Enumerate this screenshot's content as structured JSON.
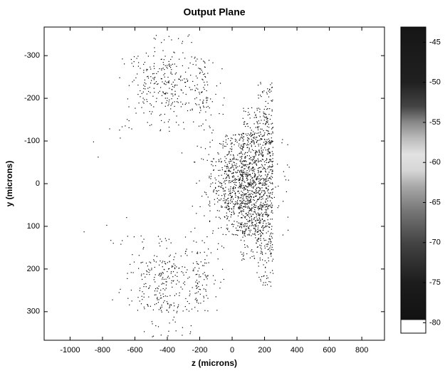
{
  "chart_data": {
    "type": "intensity",
    "title": "Output Plane",
    "x_label": "z (microns)",
    "y_label": "y (microns)",
    "xlim": [
      -1160,
      940
    ],
    "ylim": [
      367,
      -367
    ],
    "xticks": [
      -1000,
      -800,
      -600,
      -400,
      -200,
      0,
      200,
      400,
      600,
      800
    ],
    "yticks": [
      -300,
      -200,
      -100,
      0,
      100,
      200,
      300
    ],
    "x": [
      -1100,
      -1000,
      -900,
      -800,
      -700,
      -600,
      -500,
      -400,
      -300,
      -200,
      -100,
      0,
      100,
      200,
      300,
      400,
      500,
      600,
      700,
      800,
      900
    ],
    "y": [
      -330,
      -270,
      -210,
      -150,
      -90,
      -30,
      30,
      90,
      150,
      210,
      270,
      330
    ],
    "values": [
      [
        -80,
        -80,
        -80,
        -80,
        -80,
        -80,
        -74,
        -74,
        -74,
        -80,
        -80,
        -80,
        -80,
        -80,
        -80,
        -80,
        -80,
        -80,
        -80,
        -80,
        -80
      ],
      [
        -80,
        -80,
        -80,
        -80,
        -76,
        -72,
        -68,
        -66,
        -70,
        -68,
        -76,
        -80,
        -80,
        -80,
        -80,
        -80,
        -80,
        -80,
        -80,
        -80,
        -80
      ],
      [
        -80,
        -80,
        -80,
        -80,
        -80,
        -72,
        -68,
        -64,
        -70,
        -66,
        -74,
        -80,
        -80,
        -68,
        -80,
        -80,
        -80,
        -80,
        -80,
        -80,
        -80
      ],
      [
        -80,
        -80,
        -80,
        -78,
        -76,
        -74,
        -74,
        -72,
        -74,
        -72,
        -74,
        -80,
        -68,
        -62,
        -80,
        -80,
        -80,
        -80,
        -80,
        -80,
        -80
      ],
      [
        -80,
        -80,
        -78,
        -78,
        -78,
        -80,
        -80,
        -80,
        -78,
        -76,
        -72,
        -64,
        -56,
        -58,
        -76,
        -80,
        -80,
        -80,
        -80,
        -80,
        -80
      ],
      [
        -80,
        -80,
        -80,
        -80,
        -80,
        -80,
        -80,
        -80,
        -80,
        -74,
        -66,
        -56,
        -52,
        -56,
        -74,
        -80,
        -80,
        -80,
        -80,
        -80,
        -80
      ],
      [
        -80,
        -80,
        -80,
        -80,
        -80,
        -80,
        -80,
        -80,
        -80,
        -74,
        -66,
        -56,
        -52,
        -56,
        -74,
        -80,
        -80,
        -80,
        -80,
        -80,
        -80
      ],
      [
        -80,
        -80,
        -78,
        -78,
        -78,
        -80,
        -80,
        -80,
        -78,
        -76,
        -72,
        -64,
        -56,
        -58,
        -76,
        -80,
        -80,
        -80,
        -80,
        -80,
        -80
      ],
      [
        -80,
        -80,
        -80,
        -78,
        -76,
        -74,
        -74,
        -72,
        -74,
        -72,
        -74,
        -80,
        -68,
        -62,
        -80,
        -80,
        -80,
        -80,
        -80,
        -80,
        -80
      ],
      [
        -80,
        -80,
        -80,
        -80,
        -80,
        -72,
        -68,
        -64,
        -70,
        -66,
        -74,
        -80,
        -80,
        -68,
        -80,
        -80,
        -80,
        -80,
        -80,
        -80,
        -80
      ],
      [
        -80,
        -80,
        -80,
        -80,
        -76,
        -72,
        -68,
        -66,
        -70,
        -68,
        -76,
        -80,
        -80,
        -80,
        -80,
        -80,
        -80,
        -80,
        -80,
        -80,
        -80
      ],
      [
        -80,
        -80,
        -80,
        -80,
        -80,
        -80,
        -74,
        -74,
        -74,
        -80,
        -80,
        -80,
        -80,
        -80,
        -80,
        -80,
        -80,
        -80,
        -80,
        -80,
        -80
      ]
    ],
    "dot_color": "#000000",
    "colorbar": {
      "clim": [
        -81.3,
        -43.1
      ],
      "ticks": [
        -45,
        -50,
        -55,
        -60,
        -65,
        -70,
        -75,
        -80
      ],
      "colors": [
        {
          "value": -43.1,
          "color": "#161616"
        },
        {
          "value": -50,
          "color": "#202020"
        },
        {
          "value": -53,
          "color": "#444444"
        },
        {
          "value": -55,
          "color": "#888888"
        },
        {
          "value": -57,
          "color": "#bbbbbb"
        },
        {
          "value": -59,
          "color": "#e2e2e2"
        },
        {
          "value": -61,
          "color": "#d6d6d6"
        },
        {
          "value": -63,
          "color": "#a8a8a8"
        },
        {
          "value": -66,
          "color": "#777777"
        },
        {
          "value": -70,
          "color": "#444444"
        },
        {
          "value": -75,
          "color": "#1c1c1c"
        },
        {
          "value": -79.6,
          "color": "#121212"
        },
        {
          "value": -79.7,
          "color": "#ffffff"
        },
        {
          "value": -81.3,
          "color": "#ffffff"
        }
      ]
    }
  }
}
